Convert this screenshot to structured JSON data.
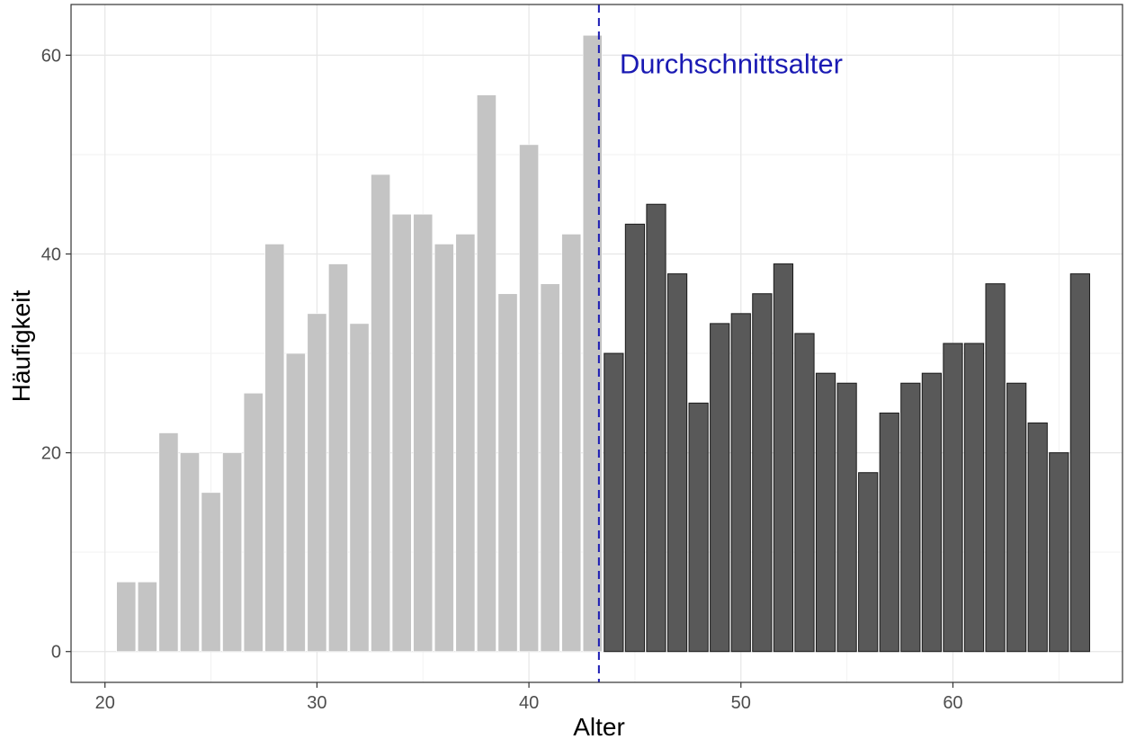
{
  "chart_data": {
    "type": "bar",
    "xlabel": "Alter",
    "ylabel": "Häufigkeit",
    "xlim": [
      18.4,
      68.0
    ],
    "ylim": [
      -3.1,
      65.1
    ],
    "x_ticks": [
      20,
      30,
      40,
      50,
      60
    ],
    "y_ticks": [
      0,
      20,
      40,
      60
    ],
    "grid": true,
    "series": [
      {
        "group": "below_mean",
        "color": "#c4c4c4",
        "x": [
          21,
          22,
          23,
          24,
          25,
          26,
          27,
          28,
          29,
          30,
          31,
          32,
          33,
          34,
          35,
          36,
          37,
          38,
          39,
          40,
          41,
          42,
          43
        ],
        "values": [
          7,
          7,
          22,
          20,
          16,
          20,
          26,
          41,
          30,
          34,
          39,
          33,
          48,
          44,
          44,
          41,
          42,
          56,
          36,
          51,
          37,
          42,
          62
        ]
      },
      {
        "group": "above_mean",
        "color": "#595959",
        "x": [
          44,
          45,
          46,
          47,
          48,
          49,
          50,
          51,
          52,
          53,
          54,
          55,
          56,
          57,
          58,
          59,
          60,
          61,
          62,
          63,
          64,
          65,
          66
        ],
        "values": [
          30,
          43,
          45,
          38,
          25,
          33,
          34,
          36,
          39,
          32,
          28,
          27,
          18,
          24,
          27,
          28,
          31,
          31,
          37,
          27,
          23,
          20,
          38
        ]
      }
    ],
    "mean_line": {
      "x": 43.3,
      "label": "Durchschnittsalter",
      "color": "#1a1ab3"
    }
  }
}
